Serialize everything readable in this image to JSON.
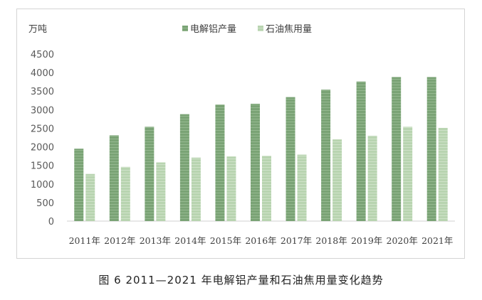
{
  "caption": "图 6 2011—2021 年电解铝产量和石油焦用量变化趋势",
  "chart_data": {
    "type": "bar",
    "unit_label": "万吨",
    "categories": [
      "2011年",
      "2012年",
      "2013年",
      "2014年",
      "2015年",
      "2016年",
      "2017年",
      "2018年",
      "2019年",
      "2020年",
      "2021年"
    ],
    "series": [
      {
        "name": "电解铝产量",
        "color": "#7aa375",
        "values": [
          1950,
          2310,
          2540,
          2880,
          3140,
          3160,
          3340,
          3540,
          3760,
          3880,
          3880
        ]
      },
      {
        "name": "石油焦用量",
        "color": "#b8d4b0",
        "values": [
          1270,
          1460,
          1580,
          1710,
          1740,
          1760,
          1790,
          2200,
          2300,
          2540,
          2510
        ]
      }
    ],
    "ylim": [
      0,
      4500
    ],
    "yticks": [
      0,
      500,
      1000,
      1500,
      2000,
      2500,
      3000,
      3500,
      4000,
      4500
    ],
    "legend_position": "top-center",
    "grid": false
  }
}
